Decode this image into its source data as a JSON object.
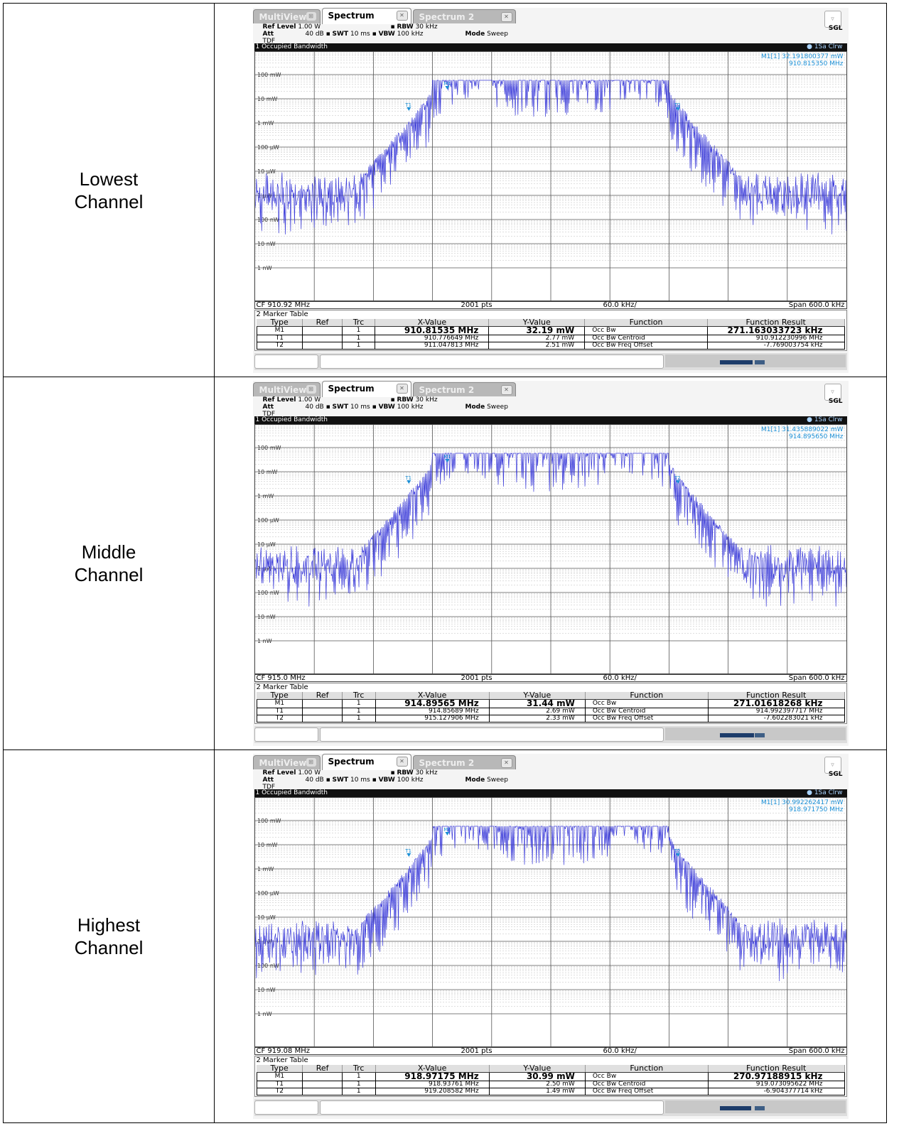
{
  "rows": [
    {
      "label_line1": "Lowest",
      "label_line2": "Channel",
      "tabs": {
        "multiview": "MultiView",
        "spectrum": "Spectrum",
        "spectrum2": "Spectrum 2"
      },
      "ref_level_label": "Ref Level",
      "ref_level": "1.00 W",
      "att_label": "Att",
      "att": "40 dB",
      "swt_label": "SWT",
      "swt": "10 ms",
      "rbw_label": "RBW",
      "rbw": "30 kHz",
      "vbw_label": "VBW",
      "vbw": "100 kHz",
      "mode_label": "Mode",
      "mode": "Sweep",
      "tdf": "TDF",
      "sgl": "SGL",
      "window_title": "1 Occupied Bandwidth",
      "trace_mode": "1Sa Clrw",
      "marker_readout_1": "M1[1]  32.191800377 mW",
      "marker_readout_2": "910.815350 MHz",
      "y_ticks": [
        "100 mW",
        "10 mW",
        "1 mW",
        "100 µW",
        "10 µW",
        "1 µW",
        "100 nW",
        "10 nW",
        "1 nW"
      ],
      "cf": "CF 910.92 MHz",
      "pts": "2001 pts",
      "div": "60.0 kHz/",
      "span": "Span 600.0 kHz",
      "marker_table_title": "2 Marker Table",
      "table_headers": [
        "Type",
        "Ref",
        "Trc",
        "X-Value",
        "Y-Value",
        "Function",
        "Function Result"
      ],
      "markers": [
        {
          "type": "M1",
          "trc": "1",
          "x": "910.81535 MHz",
          "y": "32.19 mW",
          "func": "Occ Bw",
          "result": "271.163033723 kHz"
        },
        {
          "type": "T1",
          "trc": "1",
          "x": "910.776649 MHz",
          "y": "2.77 mW",
          "func": "Occ Bw Centroid",
          "result": "910.912230996 MHz"
        },
        {
          "type": "T2",
          "trc": "1",
          "x": "911.047813 MHz",
          "y": "2.51 mW",
          "func": "Occ Bw Freq Offset",
          "result": "-7.769003754 kHz"
        }
      ]
    },
    {
      "label_line1": "Middle",
      "label_line2": "Channel",
      "tabs": {
        "multiview": "MultiView",
        "spectrum": "Spectrum",
        "spectrum2": "Spectrum 2"
      },
      "ref_level_label": "Ref Level",
      "ref_level": "1.00 W",
      "att_label": "Att",
      "att": "40 dB",
      "swt_label": "SWT",
      "swt": "10 ms",
      "rbw_label": "RBW",
      "rbw": "30 kHz",
      "vbw_label": "VBW",
      "vbw": "100 kHz",
      "mode_label": "Mode",
      "mode": "Sweep",
      "tdf": "TDF",
      "sgl": "SGL",
      "window_title": "1 Occupied Bandwidth",
      "trace_mode": "1Sa Clrw",
      "marker_readout_1": "M1[1]  31.435889022 mW",
      "marker_readout_2": "914.895650 MHz",
      "y_ticks": [
        "100 mW",
        "10 mW",
        "1 mW",
        "100 µW",
        "10 µW",
        "1 µW",
        "100 nW",
        "10 nW",
        "1 nW"
      ],
      "cf": "CF 915.0 MHz",
      "pts": "2001 pts",
      "div": "60.0 kHz/",
      "span": "Span 600.0 kHz",
      "marker_table_title": "2 Marker Table",
      "table_headers": [
        "Type",
        "Ref",
        "Trc",
        "X-Value",
        "Y-Value",
        "Function",
        "Function Result"
      ],
      "markers": [
        {
          "type": "M1",
          "trc": "1",
          "x": "914.89565 MHz",
          "y": "31.44 mW",
          "func": "Occ Bw",
          "result": "271.01618268 kHz"
        },
        {
          "type": "T1",
          "trc": "1",
          "x": "914.85689 MHz",
          "y": "2.69 mW",
          "func": "Occ Bw Centroid",
          "result": "914.992397717 MHz"
        },
        {
          "type": "T2",
          "trc": "1",
          "x": "915.127906 MHz",
          "y": "2.33 mW",
          "func": "Occ Bw Freq Offset",
          "result": "-7.602283021 kHz"
        }
      ]
    },
    {
      "label_line1": "Highest",
      "label_line2": "Channel",
      "tabs": {
        "multiview": "MultiView",
        "spectrum": "Spectrum",
        "spectrum2": "Spectrum 2"
      },
      "ref_level_label": "Ref Level",
      "ref_level": "1.00 W",
      "att_label": "Att",
      "att": "40 dB",
      "swt_label": "SWT",
      "swt": "10 ms",
      "rbw_label": "RBW",
      "rbw": "30 kHz",
      "vbw_label": "VBW",
      "vbw": "100 kHz",
      "mode_label": "Mode",
      "mode": "Sweep",
      "tdf": "TDF",
      "sgl": "SGL",
      "window_title": "1 Occupied Bandwidth",
      "trace_mode": "1Sa Clrw",
      "marker_readout_1": "M1[1]  30.992262417 mW",
      "marker_readout_2": "918.971750 MHz",
      "y_ticks": [
        "100 mW",
        "10 mW",
        "1 mW",
        "100 µW",
        "10 µW",
        "1 µW",
        "100 nW",
        "10 nW",
        "1 nW"
      ],
      "cf": "CF 919.08 MHz",
      "pts": "2001 pts",
      "div": "60.0 kHz/",
      "span": "Span 600.0 kHz",
      "marker_table_title": "2 Marker Table",
      "table_headers": [
        "Type",
        "Ref",
        "Trc",
        "X-Value",
        "Y-Value",
        "Function",
        "Function Result"
      ],
      "markers": [
        {
          "type": "M1",
          "trc": "1",
          "x": "918.97175 MHz",
          "y": "30.99 mW",
          "func": "Occ Bw",
          "result": "270.97188915 kHz"
        },
        {
          "type": "T1",
          "trc": "1",
          "x": "918.93761 MHz",
          "y": "2.50 mW",
          "func": "Occ Bw Centroid",
          "result": "919.073095622 MHz"
        },
        {
          "type": "T2",
          "trc": "1",
          "x": "919.208582 MHz",
          "y": "1.49 mW",
          "func": "Occ Bw Freq Offset",
          "result": "-6.904377714 kHz"
        }
      ]
    }
  ],
  "colors": {
    "trace": "#3b3bd9",
    "marker": "#1a8fd6",
    "titlebar": "#111111"
  }
}
